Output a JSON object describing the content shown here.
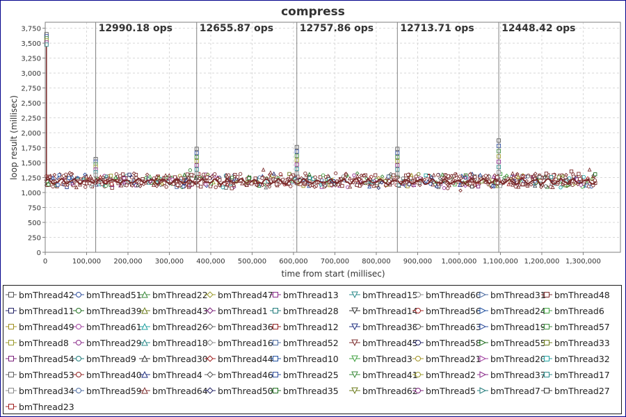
{
  "chart_data": {
    "type": "scatter",
    "title": "compress",
    "xlabel": "time from start (millisec)",
    "ylabel": "loop result (millisec)",
    "xlim": [
      0,
      1390000
    ],
    "ylim": [
      0,
      3850
    ],
    "x_ticks": [
      0,
      100000,
      200000,
      300000,
      400000,
      500000,
      600000,
      700000,
      800000,
      900000,
      1000000,
      1100000,
      1200000,
      1300000
    ],
    "x_tick_labels": [
      "0",
      "100,000",
      "200,000",
      "300,000",
      "400,000",
      "500,000",
      "600,000",
      "700,000",
      "800,000",
      "900,000",
      "1,000,000",
      "1,100,000",
      "1,200,000",
      "1,300,000"
    ],
    "y_ticks": [
      0,
      250,
      500,
      750,
      1000,
      1250,
      1500,
      1750,
      2000,
      2250,
      2500,
      2750,
      3000,
      3250,
      3500,
      3750
    ],
    "y_tick_labels": [
      "0",
      "250",
      "500",
      "750",
      "1,000",
      "1,250",
      "1,500",
      "1,750",
      "2,000",
      "2,250",
      "2,500",
      "2,750",
      "3,000",
      "3,250",
      "3,500",
      "3,750"
    ],
    "grid": true,
    "legend_position": "bottom",
    "x_range_shown": [
      0,
      1330000
    ],
    "typical_y_range": [
      1100,
      1300
    ],
    "initial_spike_y": 3650,
    "iteration_markers": [
      {
        "x": 122000,
        "label": "12990.18 ops",
        "spike_y": 1560
      },
      {
        "x": 366000,
        "label": "12655.87 ops",
        "spike_y": 1730
      },
      {
        "x": 608000,
        "label": "12757.86 ops",
        "spike_y": 1760
      },
      {
        "x": 851000,
        "label": "12713.71 ops",
        "spike_y": 1730
      },
      {
        "x": 1096000,
        "label": "12448.42 ops",
        "spike_y": 1870
      }
    ],
    "legend": [
      "bmThread42",
      "bmThread51",
      "bmThread22",
      "bmThread47",
      "bmThread13",
      "bmThread15",
      "bmThread60",
      "bmThread31",
      "bmThread48",
      "bmThread11",
      "bmThread39",
      "bmThread43",
      "bmThread1",
      "bmThread28",
      "bmThread14",
      "bmThread56",
      "bmThread24",
      "bmThread6",
      "bmThread49",
      "bmThread61",
      "bmThread26",
      "bmThread36",
      "bmThread12",
      "bmThread38",
      "bmThread63",
      "bmThread19",
      "bmThread57",
      "bmThread8",
      "bmThread29",
      "bmThread18",
      "bmThread16",
      "bmThread52",
      "bmThread45",
      "bmThread58",
      "bmThread55",
      "bmThread33",
      "bmThread54",
      "bmThread9",
      "bmThread30",
      "bmThread44",
      "bmThread10",
      "bmThread3",
      "bmThread21",
      "bmThread20",
      "bmThread32",
      "bmThread53",
      "bmThread40",
      "bmThread4",
      "bmThread46",
      "bmThread25",
      "bmThread41",
      "bmThread2",
      "bmThread37",
      "bmThread17",
      "bmThread34",
      "bmThread59",
      "bmThread64",
      "bmThread50",
      "bmThread35",
      "bmThread62",
      "bmThread5",
      "bmThread7",
      "bmThread27",
      "bmThread23"
    ],
    "colors": {
      "main_series": "#7b2b2b",
      "marker_line": "#808080",
      "grid": "#d8d8d8",
      "plot_border": "#7f7f7f",
      "legend_border": "#1a1a1a",
      "frame_border": "#00008b",
      "series_palette": [
        "#555555",
        "#2e4d9c",
        "#3a8a3a",
        "#9a9a2a",
        "#8a2a8a",
        "#2a8a8a",
        "#8a8a8a",
        "#4a6aa0",
        "#7b2b2b",
        "#222266",
        "#1f6e1f",
        "#6b7a1a",
        "#7a1f7a",
        "#1f7a7a",
        "#333333",
        "#a02020",
        "#2050a0",
        "#40a040",
        "#a09020",
        "#a040a0",
        "#20a0a0",
        "#606060",
        "#902020",
        "#203080"
      ]
    }
  }
}
